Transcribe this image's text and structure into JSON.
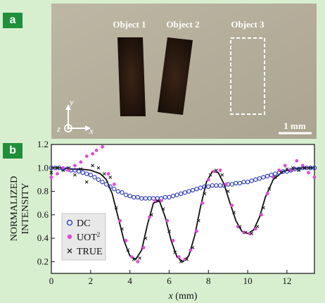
{
  "panels": {
    "a": "a",
    "b": "b"
  },
  "photo": {
    "object_labels": [
      "Object 1",
      "Object 2",
      "Object 3"
    ],
    "axes": {
      "y": "y",
      "z": "z",
      "x": "x"
    },
    "scale_bar": "1 mm",
    "colors": {
      "background": "#b4ae9c",
      "object": "#2a1c12",
      "outline": "#ffffff"
    }
  },
  "chart_data": {
    "type": "scatter",
    "xlabel_italic": "x",
    "xlabel_unit": " (mm)",
    "ylabel_line1": "NORMALIZED",
    "ylabel_line2": "INTENSITY",
    "xlim": [
      0,
      13.4
    ],
    "ylim": [
      0.1,
      1.2
    ],
    "x_ticks": [
      0,
      2,
      4,
      6,
      8,
      10,
      12
    ],
    "y_ticks": [
      0.2,
      0.4,
      0.6,
      0.8,
      1.0,
      1.2
    ],
    "legend_position": "bottom-left",
    "legend": [
      {
        "key": "dc",
        "label": "DC",
        "marker": "open-circle",
        "color": "#2233bb"
      },
      {
        "key": "uot",
        "label": "UOT",
        "sup": "2",
        "marker": "filled-circle",
        "color": "#e24ad8"
      },
      {
        "key": "true",
        "label": "TRUE",
        "marker": "x",
        "color": "#222222"
      }
    ],
    "series": [
      {
        "key": "fit",
        "style": "line",
        "color": "#111111",
        "x": [
          0,
          0.5,
          1,
          1.5,
          2,
          2.5,
          2.8,
          3.1,
          3.4,
          3.7,
          4.0,
          4.3,
          4.6,
          4.9,
          5.2,
          5.5,
          5.8,
          6.1,
          6.4,
          6.7,
          7.0,
          7.3,
          7.6,
          7.9,
          8.2,
          8.5,
          8.8,
          9.1,
          9.4,
          9.7,
          10.0,
          10.3,
          10.6,
          10.9,
          11.3,
          11.8,
          12.3,
          12.8,
          13.4
        ],
        "y": [
          1.0,
          1.0,
          0.99,
          0.99,
          0.98,
          0.95,
          0.9,
          0.78,
          0.58,
          0.38,
          0.25,
          0.22,
          0.3,
          0.52,
          0.7,
          0.72,
          0.58,
          0.38,
          0.24,
          0.2,
          0.25,
          0.42,
          0.67,
          0.88,
          0.97,
          0.96,
          0.86,
          0.7,
          0.55,
          0.46,
          0.44,
          0.47,
          0.58,
          0.75,
          0.9,
          0.97,
          0.99,
          1.0,
          1.0
        ]
      },
      {
        "key": "dc",
        "style": "open-circle",
        "color": "#2233bb",
        "x": [
          0,
          0.2,
          0.4,
          0.6,
          0.8,
          1,
          1.2,
          1.4,
          1.6,
          1.8,
          2,
          2.2,
          2.4,
          2.6,
          2.8,
          3,
          3.2,
          3.4,
          3.6,
          3.8,
          4,
          4.2,
          4.4,
          4.6,
          4.8,
          5,
          5.2,
          5.4,
          5.6,
          5.8,
          6,
          6.2,
          6.4,
          6.6,
          6.8,
          7,
          7.2,
          7.4,
          7.6,
          7.8,
          8,
          8.2,
          8.4,
          8.6,
          8.8,
          9,
          9.2,
          9.4,
          9.6,
          9.8,
          10,
          10.2,
          10.4,
          10.6,
          10.8,
          11,
          11.2,
          11.4,
          11.6,
          11.8,
          12,
          12.2,
          12.4,
          12.6,
          12.8,
          13,
          13.2,
          13.4
        ],
        "y": [
          1.0,
          1.0,
          1.0,
          0.99,
          0.99,
          0.98,
          0.98,
          0.97,
          0.96,
          0.95,
          0.94,
          0.92,
          0.9,
          0.88,
          0.86,
          0.84,
          0.82,
          0.8,
          0.79,
          0.77,
          0.76,
          0.75,
          0.75,
          0.74,
          0.74,
          0.74,
          0.74,
          0.74,
          0.74,
          0.75,
          0.75,
          0.76,
          0.77,
          0.78,
          0.79,
          0.8,
          0.81,
          0.82,
          0.83,
          0.84,
          0.84,
          0.85,
          0.85,
          0.85,
          0.85,
          0.86,
          0.86,
          0.87,
          0.87,
          0.88,
          0.88,
          0.89,
          0.9,
          0.91,
          0.92,
          0.93,
          0.94,
          0.95,
          0.96,
          0.97,
          0.97,
          0.98,
          0.99,
          0.99,
          1.0,
          1.0,
          1.0,
          1.0
        ]
      },
      {
        "key": "uot",
        "style": "filled-circle",
        "color": "#e24ad8",
        "x": [
          0,
          0.3,
          0.6,
          0.9,
          1.2,
          1.5,
          1.8,
          2.1,
          2.3,
          2.6,
          2.9,
          3.2,
          3.5,
          3.8,
          4.1,
          4.4,
          4.7,
          5.0,
          5.3,
          5.6,
          5.9,
          6.2,
          6.5,
          6.8,
          7.1,
          7.4,
          7.7,
          8.0,
          8.3,
          8.6,
          8.9,
          9.2,
          9.5,
          9.8,
          10.1,
          10.4,
          10.7,
          11.0,
          11.3,
          11.6,
          11.9,
          12.2,
          12.5,
          12.8,
          13.1,
          13.4
        ],
        "y": [
          0.92,
          0.95,
          1.0,
          0.98,
          1.02,
          1.05,
          1.1,
          1.12,
          1.15,
          1.18,
          0.95,
          0.86,
          0.55,
          0.38,
          0.24,
          0.2,
          0.32,
          0.58,
          0.72,
          0.72,
          0.55,
          0.38,
          0.24,
          0.22,
          0.3,
          0.46,
          0.7,
          0.9,
          0.97,
          0.98,
          0.86,
          0.68,
          0.5,
          0.45,
          0.44,
          0.48,
          0.6,
          0.78,
          0.92,
          0.98,
          1.02,
          0.98,
          1.06,
          1.02,
          0.96,
          0.92
        ]
      },
      {
        "key": "true",
        "style": "x",
        "color": "#222222",
        "x": [
          0,
          0.3,
          0.6,
          0.9,
          1.2,
          1.5,
          1.8,
          2.1,
          2.4,
          2.7,
          3.0,
          3.3,
          3.6,
          3.9,
          4.2,
          4.5,
          4.8,
          5.1,
          5.4,
          5.7,
          6.0,
          6.3,
          6.6,
          6.9,
          7.2,
          7.5,
          7.8,
          8.1,
          8.4,
          8.7,
          9.0,
          9.3,
          9.6,
          9.9,
          10.2,
          10.5,
          10.8,
          11.1,
          11.4,
          11.7,
          12.0,
          12.3,
          12.6,
          12.9,
          13.2
        ],
        "y": [
          0.96,
          1.0,
          0.98,
          1.0,
          0.94,
          0.99,
          0.88,
          1.02,
          1.0,
          0.95,
          0.92,
          0.66,
          0.48,
          0.3,
          0.22,
          0.23,
          0.4,
          0.6,
          0.72,
          0.65,
          0.46,
          0.28,
          0.2,
          0.22,
          0.32,
          0.55,
          0.78,
          0.94,
          0.98,
          0.94,
          0.8,
          0.62,
          0.5,
          0.45,
          0.44,
          0.5,
          0.66,
          0.82,
          0.92,
          0.96,
          0.99,
          1.0,
          0.98,
          1.0,
          1.0
        ]
      }
    ]
  }
}
